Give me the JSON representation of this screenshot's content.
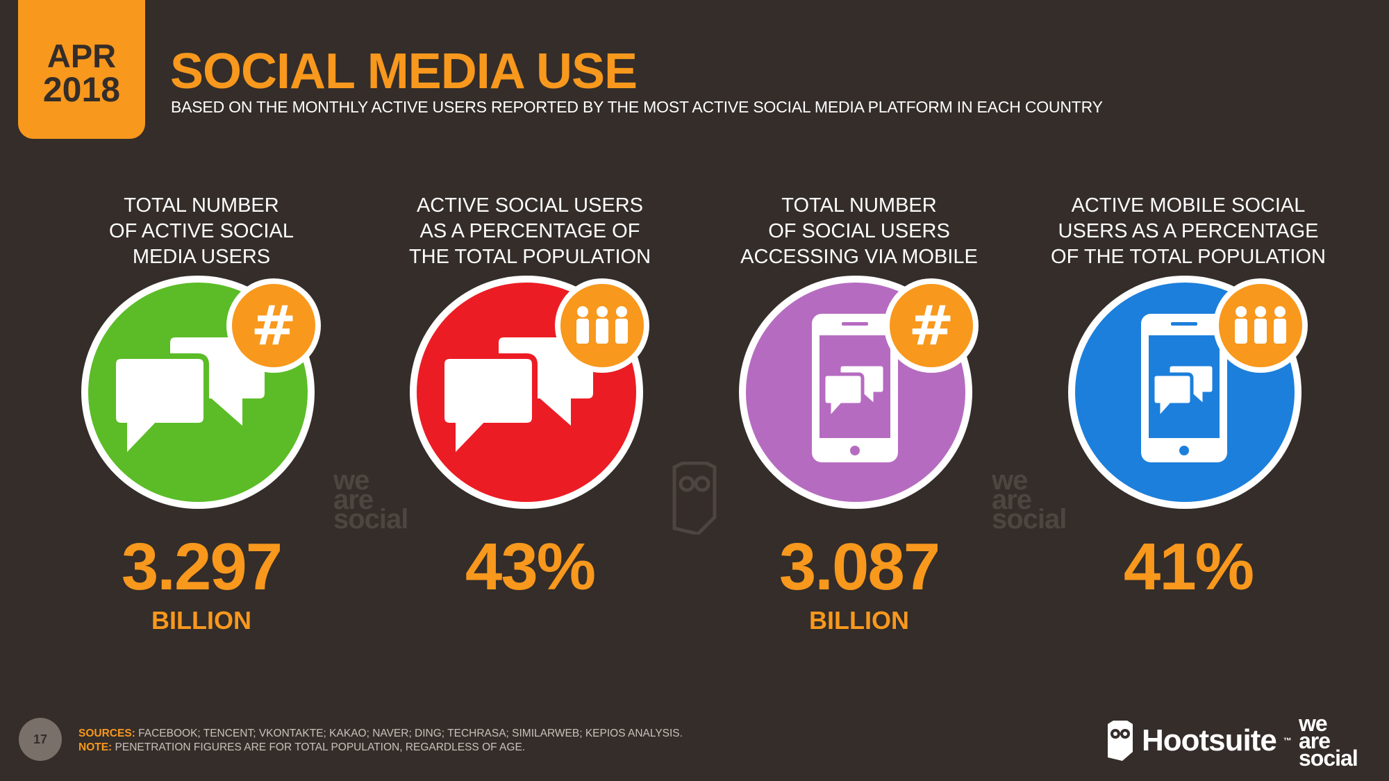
{
  "header": {
    "badge_month": "APR",
    "badge_year": "2018",
    "title": "SOCIAL MEDIA USE",
    "subtitle": "BASED ON THE MONTHLY ACTIVE USERS REPORTED BY THE MOST ACTIVE SOCIAL MEDIA PLATFORM IN EACH COUNTRY"
  },
  "stats": [
    {
      "label_lines": [
        "TOTAL NUMBER",
        "OF ACTIVE SOCIAL",
        "MEDIA USERS"
      ],
      "value": "3.297",
      "unit": "BILLION",
      "color": "#5bbc27",
      "icon": "chat-bubbles-icon",
      "badge_icon": "hashtag-icon"
    },
    {
      "label_lines": [
        "ACTIVE SOCIAL USERS",
        "AS A PERCENTAGE OF",
        "THE TOTAL POPULATION"
      ],
      "value": "43%",
      "unit": "",
      "color": "#ec1c24",
      "icon": "chat-bubbles-icon",
      "badge_icon": "people-icon"
    },
    {
      "label_lines": [
        "TOTAL NUMBER",
        "OF SOCIAL USERS",
        "ACCESSING VIA MOBILE"
      ],
      "value": "3.087",
      "unit": "BILLION",
      "color": "#b56cc0",
      "icon": "mobile-chat-icon",
      "badge_icon": "hashtag-icon"
    },
    {
      "label_lines": [
        "ACTIVE MOBILE SOCIAL",
        "USERS AS A PERCENTAGE",
        "OF THE TOTAL POPULATION"
      ],
      "value": "41%",
      "unit": "",
      "color": "#1c7fdc",
      "icon": "mobile-chat-icon",
      "badge_icon": "people-icon"
    }
  ],
  "watermarks": {
    "line1": "we",
    "line2": "are",
    "line3": "social"
  },
  "footer": {
    "page_number": "17",
    "sources_label": "SOURCES:",
    "sources_text": "FACEBOOK; TENCENT; VKONTAKTE; KAKAO; NAVER; DING; TECHRASA; SIMILARWEB; KEPIOS ANALYSIS.",
    "note_label": "NOTE:",
    "note_text": "PENETRATION FIGURES ARE FOR TOTAL POPULATION, REGARDLESS OF AGE."
  },
  "brands": {
    "hootsuite": "Hootsuite",
    "hootsuite_tm": "™",
    "was_line1": "we",
    "was_line2": "are",
    "was_line3": "social"
  },
  "colors": {
    "background": "#342d29",
    "accent": "#f8981d"
  }
}
